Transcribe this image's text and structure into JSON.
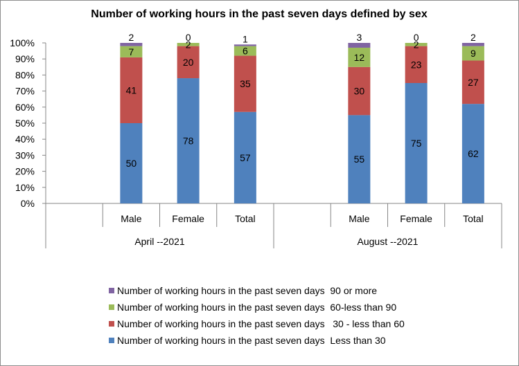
{
  "chart_data": {
    "type": "bar",
    "stacked": true,
    "title": "Number of working hours in the past seven days defined by sex",
    "ylim": [
      0,
      100
    ],
    "y_tick_labels": [
      "0%",
      "10%",
      "20%",
      "30%",
      "40%",
      "50%",
      "60%",
      "70%",
      "80%",
      "90%",
      "100%"
    ],
    "grid": false,
    "legend_position": "bottom",
    "groups": [
      {
        "label": "April --2021",
        "categories": [
          "Male",
          "Female",
          "Total"
        ]
      },
      {
        "label": "August --2021",
        "categories": [
          "Male",
          "Female",
          "Total"
        ]
      }
    ],
    "series": [
      {
        "name": "Number of working hours in the past seven days  Less than 30",
        "color": "#4f81bd",
        "values": [
          50,
          78,
          57,
          55,
          75,
          62
        ]
      },
      {
        "name": "Number of working hours in the past seven days   30 - less than 60",
        "color": "#c0504d",
        "values": [
          41,
          20,
          35,
          30,
          23,
          27
        ]
      },
      {
        "name": "Number of working hours in the past seven days  60-less than 90",
        "color": "#9bbb59",
        "values": [
          7,
          2,
          6,
          12,
          2,
          9
        ]
      },
      {
        "name": "Number of working hours in the past seven days  90 or more",
        "color": "#8064a2",
        "values": [
          2,
          0,
          1,
          3,
          0,
          2
        ]
      }
    ]
  }
}
